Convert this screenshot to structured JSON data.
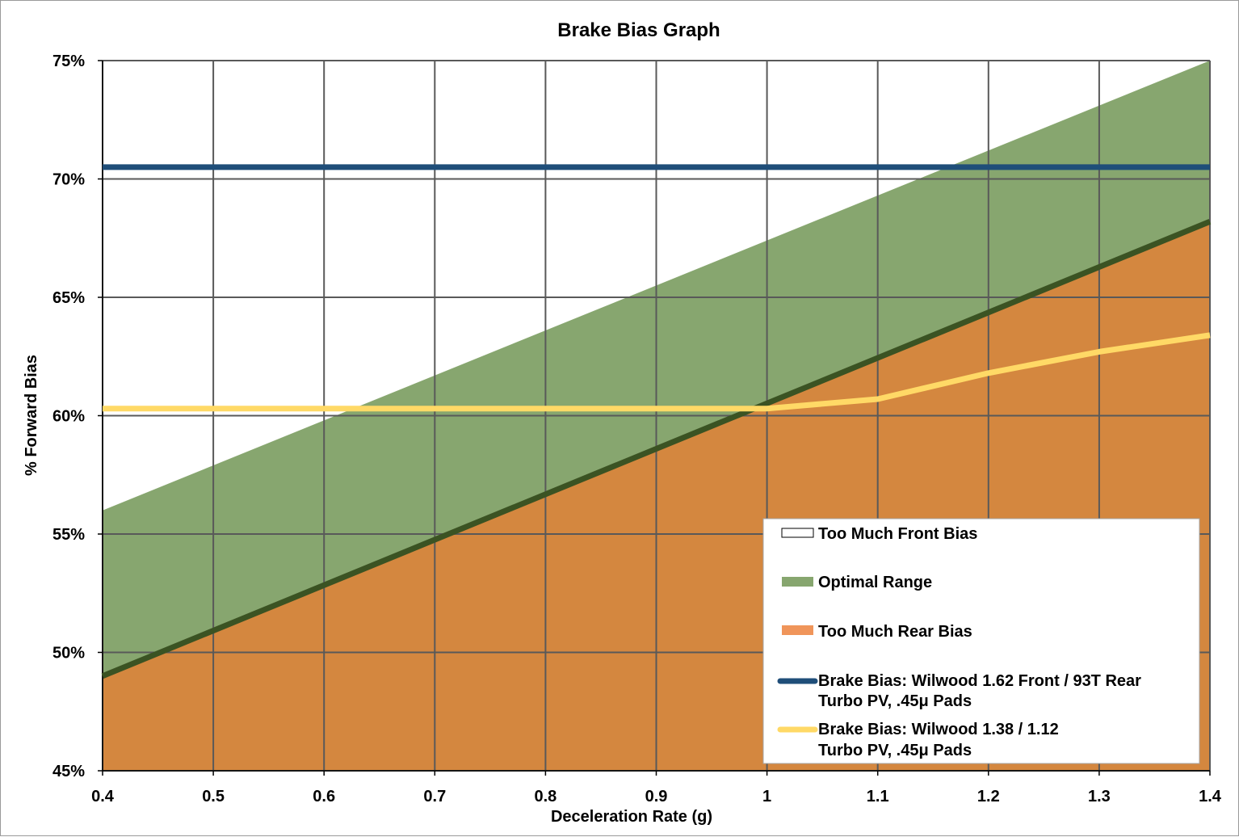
{
  "chart_data": {
    "type": "area",
    "title": "Brake Bias Graph",
    "xlabel": "Deceleration Rate (g)",
    "ylabel": "% Forward Bias",
    "xlim": [
      0.4,
      1.4
    ],
    "ylim": [
      45,
      75
    ],
    "x_ticks": [
      "0.4",
      "0.5",
      "0.6",
      "0.7",
      "0.8",
      "0.9",
      "1",
      "1.1",
      "1.2",
      "1.3",
      "1.4"
    ],
    "y_ticks": [
      "45%",
      "50%",
      "55%",
      "60%",
      "65%",
      "70%",
      "75%"
    ],
    "grid": true,
    "legend_position": "bottom-right",
    "colors": {
      "front_bias": "#ffffff",
      "optimal": "#87a66f",
      "rear_bias": "#d4873f",
      "divider": "#3b5323",
      "wilwood_162": "#1f4e79",
      "wilwood_138": "#ffd966",
      "grid": "#595959"
    },
    "series": [
      {
        "name": "Too Much Front Bias",
        "kind": "area",
        "x": [
          0.4,
          1.4
        ],
        "y": [
          75,
          75
        ]
      },
      {
        "name": "Optimal Range",
        "kind": "area",
        "x": [
          0.4,
          1.4
        ],
        "y": [
          56.0,
          75.0
        ]
      },
      {
        "name": "Too Much Rear Bias",
        "kind": "area",
        "x": [
          0.4,
          1.4
        ],
        "y": [
          49.0,
          68.2
        ]
      },
      {
        "name": "Brake Bias: Wilwood 1.62 Front / 93T Rear Turbo PV, .45μ Pads",
        "kind": "line",
        "x": [
          0.4,
          0.5,
          0.6,
          0.7,
          0.8,
          0.9,
          1.0,
          1.1,
          1.2,
          1.3,
          1.4
        ],
        "y": [
          70.5,
          70.5,
          70.5,
          70.5,
          70.5,
          70.5,
          70.5,
          70.5,
          70.5,
          70.5,
          70.5
        ]
      },
      {
        "name": "Brake Bias: Wilwood 1.38 / 1.12 Turbo PV, .45μ Pads",
        "kind": "line",
        "x": [
          0.4,
          0.5,
          0.6,
          0.7,
          0.8,
          0.9,
          1.0,
          1.1,
          1.2,
          1.3,
          1.4
        ],
        "y": [
          60.3,
          60.3,
          60.3,
          60.3,
          60.3,
          60.3,
          60.3,
          60.7,
          61.8,
          62.7,
          63.4
        ]
      }
    ],
    "legend": [
      {
        "label": "Too Much Front Bias",
        "kind": "box"
      },
      {
        "label": "Optimal Range",
        "kind": "box"
      },
      {
        "label": "Too Much Rear Bias",
        "kind": "box"
      },
      {
        "label_line1": "Brake Bias: Wilwood 1.62 Front / 93T Rear",
        "label_line2": "Turbo PV, .45μ Pads",
        "kind": "line"
      },
      {
        "label_line1": "Brake Bias: Wilwood 1.38 / 1.12",
        "label_line2": "Turbo PV, .45μ Pads",
        "kind": "line"
      }
    ]
  }
}
